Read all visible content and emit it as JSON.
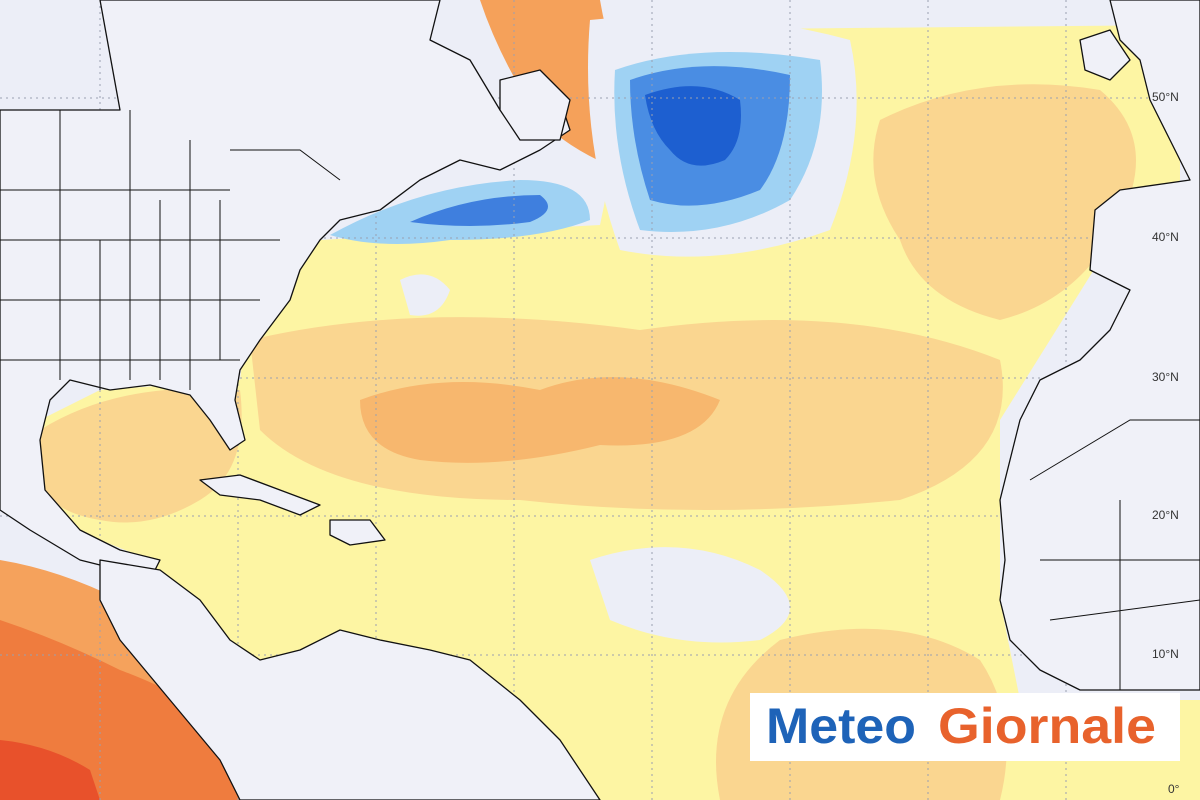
{
  "map": {
    "lat_labels": [
      "50°N",
      "40°N",
      "30°N",
      "20°N",
      "10°N",
      "0°"
    ]
  },
  "logo": {
    "word1": "Meteo",
    "word2": "Giornale"
  }
}
